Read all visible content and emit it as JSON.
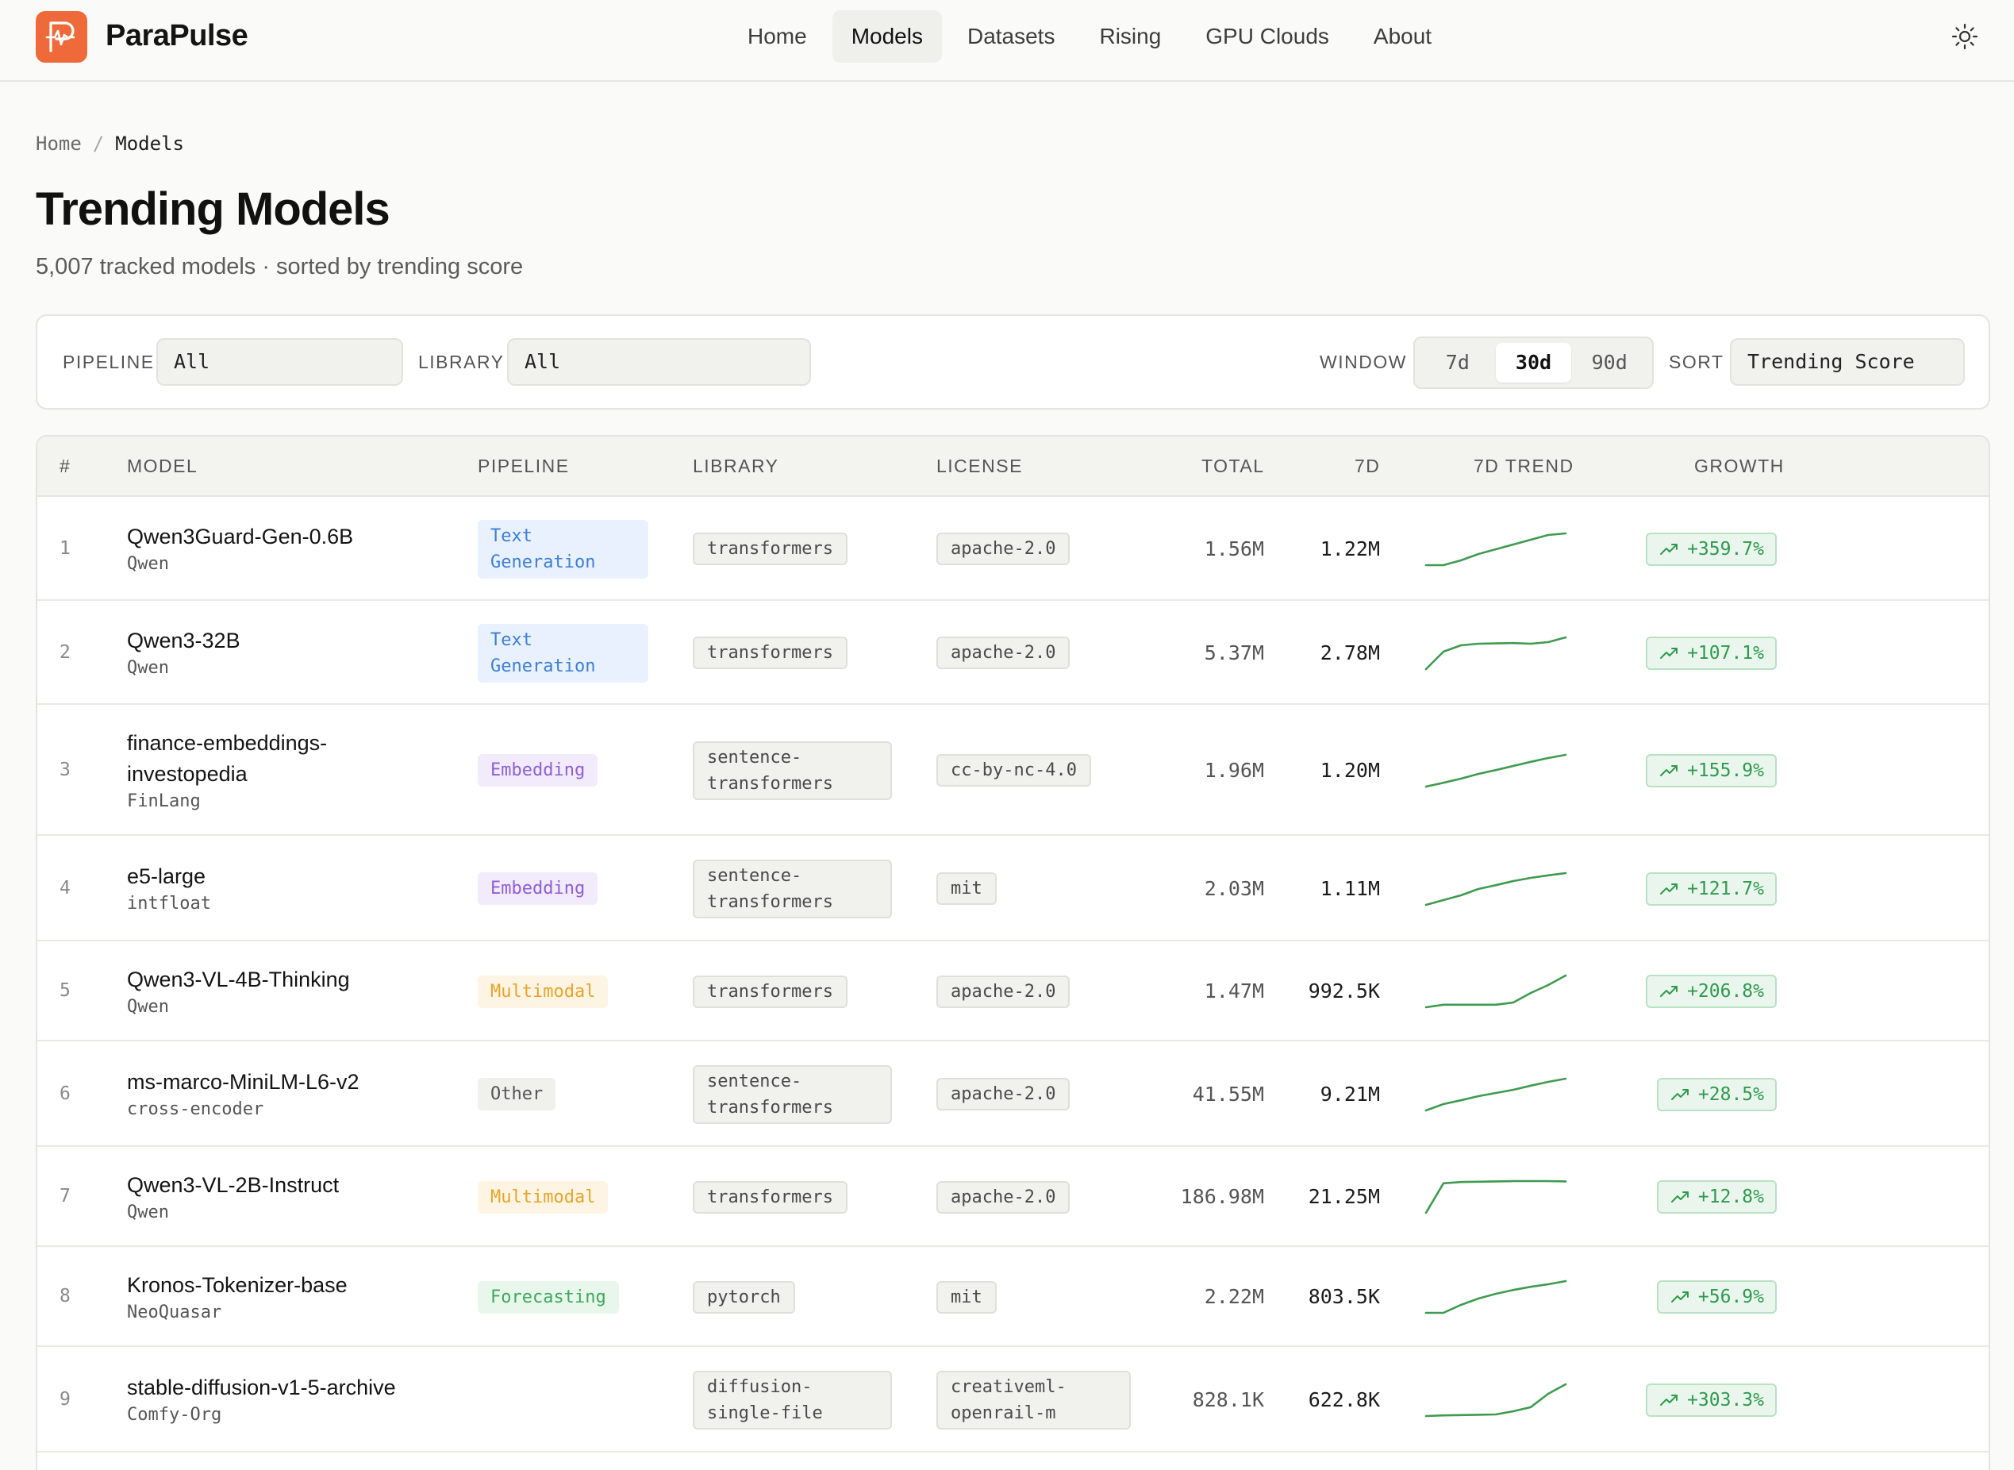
{
  "brand": {
    "name": "ParaPulse",
    "accent": "#ef6a3a"
  },
  "nav": {
    "items": [
      "Home",
      "Models",
      "Datasets",
      "Rising",
      "GPU Clouds",
      "About"
    ],
    "active": "Models"
  },
  "breadcrumb": {
    "home": "Home",
    "separator": "/",
    "current": "Models"
  },
  "page": {
    "title": "Trending Models",
    "subtitle": "5,007 tracked models · sorted by trending score"
  },
  "filters": {
    "pipeline_label": "PIPELINE",
    "pipeline_value": "All",
    "library_label": "LIBRARY",
    "library_value": "All",
    "window_label": "WINDOW",
    "window_options": [
      "7d",
      "30d",
      "90d"
    ],
    "window_selected": "30d",
    "sort_label": "SORT",
    "sort_value": "Trending Score"
  },
  "table": {
    "headers": [
      "#",
      "MODEL",
      "PIPELINE",
      "LIBRARY",
      "LICENSE",
      "TOTAL",
      "7D",
      "7D TREND",
      "GROWTH"
    ],
    "rows": [
      {
        "rank": "1",
        "name": "Qwen3Guard-Gen-0.6B",
        "name_lines": [
          "Qwen3Guard-Gen-0.6B"
        ],
        "org": "Qwen",
        "pipeline": "Text Generation",
        "pipeline_lines": [
          "Text",
          "Generation"
        ],
        "pipeline_kind": "text",
        "library_lines": [
          "transformers"
        ],
        "license_lines": [
          "apache-2.0"
        ],
        "total": "1.56M",
        "d7": "1.22M",
        "growth": "+359.7%",
        "trend": [
          0,
          0,
          0.15,
          0.35,
          0.5,
          0.65,
          0.8,
          0.95,
          1.0
        ]
      },
      {
        "rank": "2",
        "name": "Qwen3-32B",
        "name_lines": [
          "Qwen3-32B"
        ],
        "org": "Qwen",
        "pipeline": "Text Generation",
        "pipeline_lines": [
          "Text",
          "Generation"
        ],
        "pipeline_kind": "text",
        "library_lines": [
          "transformers"
        ],
        "license_lines": [
          "apache-2.0"
        ],
        "total": "5.37M",
        "d7": "2.78M",
        "growth": "+107.1%",
        "trend": [
          0,
          0.55,
          0.75,
          0.8,
          0.81,
          0.82,
          0.8,
          0.85,
          1.0
        ]
      },
      {
        "rank": "3",
        "name": "finance-embeddings-investopedia",
        "name_lines": [
          "finance-embeddings-",
          "investopedia"
        ],
        "org": "FinLang",
        "pipeline": "Embedding",
        "pipeline_lines": [
          "Embedding"
        ],
        "pipeline_kind": "embed",
        "library_lines": [
          "sentence-",
          "transformers"
        ],
        "license_lines": [
          "cc-by-nc-4.0"
        ],
        "total": "1.96M",
        "d7": "1.20M",
        "growth": "+155.9%",
        "trend": [
          0,
          0.12,
          0.25,
          0.4,
          0.52,
          0.65,
          0.78,
          0.9,
          1.0
        ]
      },
      {
        "rank": "4",
        "name": "e5-large",
        "name_lines": [
          "e5-large"
        ],
        "org": "intfloat",
        "pipeline": "Embedding",
        "pipeline_lines": [
          "Embedding"
        ],
        "pipeline_kind": "embed",
        "library_lines": [
          "sentence-",
          "transformers"
        ],
        "license_lines": [
          "mit"
        ],
        "total": "2.03M",
        "d7": "1.11M",
        "growth": "+121.7%",
        "trend": [
          0,
          0.15,
          0.3,
          0.5,
          0.62,
          0.75,
          0.85,
          0.93,
          1.0
        ]
      },
      {
        "rank": "5",
        "name": "Qwen3-VL-4B-Thinking",
        "name_lines": [
          "Qwen3-VL-4B-Thinking"
        ],
        "org": "Qwen",
        "pipeline": "Multimodal",
        "pipeline_lines": [
          "Multimodal"
        ],
        "pipeline_kind": "multi",
        "library_lines": [
          "transformers"
        ],
        "license_lines": [
          "apache-2.0"
        ],
        "total": "1.47M",
        "d7": "992.5K",
        "growth": "+206.8%",
        "trend": [
          0,
          0.08,
          0.08,
          0.08,
          0.08,
          0.15,
          0.45,
          0.7,
          1.0
        ]
      },
      {
        "rank": "6",
        "name": "ms-marco-MiniLM-L6-v2",
        "name_lines": [
          "ms-marco-MiniLM-L6-v2"
        ],
        "org": "cross-encoder",
        "pipeline": "Other",
        "pipeline_lines": [
          "Other"
        ],
        "pipeline_kind": "other",
        "library_lines": [
          "sentence-",
          "transformers"
        ],
        "license_lines": [
          "apache-2.0"
        ],
        "total": "41.55M",
        "d7": "9.21M",
        "growth": "+28.5%",
        "trend": [
          0,
          0.2,
          0.32,
          0.45,
          0.55,
          0.65,
          0.78,
          0.9,
          1.0
        ]
      },
      {
        "rank": "7",
        "name": "Qwen3-VL-2B-Instruct",
        "name_lines": [
          "Qwen3-VL-2B-Instruct"
        ],
        "org": "Qwen",
        "pipeline": "Multimodal",
        "pipeline_lines": [
          "Multimodal"
        ],
        "pipeline_kind": "multi",
        "library_lines": [
          "transformers"
        ],
        "license_lines": [
          "apache-2.0"
        ],
        "total": "186.98M",
        "d7": "21.25M",
        "growth": "+12.8%",
        "trend": [
          0,
          0.93,
          0.97,
          0.98,
          0.99,
          1.0,
          1.0,
          1.0,
          0.99
        ]
      },
      {
        "rank": "8",
        "name": "Kronos-Tokenizer-base",
        "name_lines": [
          "Kronos-Tokenizer-base"
        ],
        "org": "NeoQuasar",
        "pipeline": "Forecasting",
        "pipeline_lines": [
          "Forecasting"
        ],
        "pipeline_kind": "fore",
        "library_lines": [
          "pytorch"
        ],
        "license_lines": [
          "mit"
        ],
        "total": "2.22M",
        "d7": "803.5K",
        "growth": "+56.9%",
        "trend": [
          0,
          0,
          0.25,
          0.45,
          0.6,
          0.72,
          0.82,
          0.9,
          1.0
        ]
      },
      {
        "rank": "9",
        "name": "stable-diffusion-v1-5-archive",
        "name_lines": [
          "stable-diffusion-v1-5-archive"
        ],
        "org": "Comfy-Org",
        "pipeline": "",
        "pipeline_lines": [],
        "pipeline_kind": "",
        "library_lines": [
          "diffusion-",
          "single-file"
        ],
        "license_lines": [
          "creativeml-",
          "openrail-m"
        ],
        "total": "828.1K",
        "d7": "622.8K",
        "growth": "+303.3%",
        "trend": [
          0,
          0.02,
          0.03,
          0.04,
          0.05,
          0.15,
          0.28,
          0.7,
          1.0
        ]
      }
    ]
  },
  "colors": {
    "trend_line": "#3f9b4f",
    "growth_text": "#2f9a4e"
  }
}
